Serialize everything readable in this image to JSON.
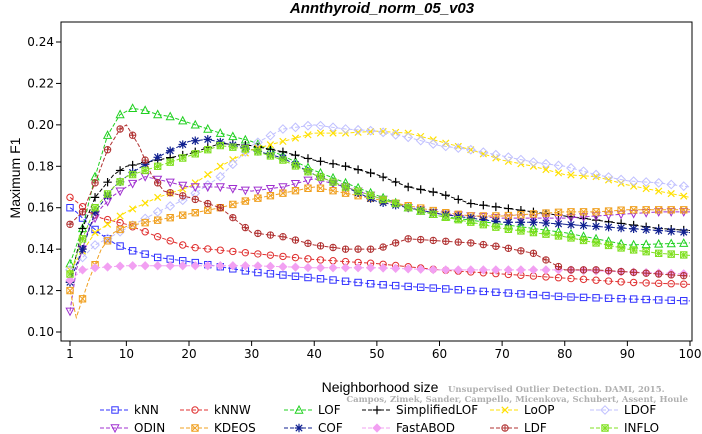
{
  "chart_data": {
    "type": "line",
    "title": "Annthyroid_norm_05_v03",
    "xlabel": "Neighborhood size",
    "ylabel": "Maximum F1",
    "xlim": [
      1,
      100
    ],
    "ylim": [
      0.1,
      0.245
    ],
    "x_ticks": [
      1,
      10,
      20,
      30,
      40,
      50,
      60,
      70,
      80,
      90,
      100
    ],
    "y_ticks": [
      0.1,
      0.12,
      0.14,
      0.16,
      0.18,
      0.2,
      0.22,
      0.24
    ],
    "x_tick_labels": [
      "1",
      "10",
      "20",
      "30",
      "40",
      "50",
      "60",
      "70",
      "80",
      "90",
      "100"
    ],
    "y_tick_labels": [
      "0.10",
      "0.12",
      "0.14",
      "0.16",
      "0.18",
      "0.20",
      "0.22",
      "0.24"
    ],
    "grid": false,
    "legend_position": "bottom",
    "watermark": {
      "line1": "Unsupervised Outlier Detection. DAMI, 2015.",
      "line2": "Campos, Zimek, Sander, Campello, Micenkova, Schubert, Assent, Houle"
    },
    "series": [
      {
        "name": "kNN",
        "color": "#3232ff",
        "marker": "square",
        "points": [
          [
            1,
            0.16
          ],
          [
            2,
            0.158
          ],
          [
            4,
            0.152
          ],
          [
            6,
            0.147
          ],
          [
            8,
            0.143
          ],
          [
            10,
            0.14
          ],
          [
            15,
            0.136
          ],
          [
            20,
            0.134
          ],
          [
            30,
            0.129
          ],
          [
            40,
            0.126
          ],
          [
            50,
            0.123
          ],
          [
            60,
            0.121
          ],
          [
            70,
            0.119
          ],
          [
            80,
            0.117
          ],
          [
            90,
            0.116
          ],
          [
            100,
            0.115
          ]
        ]
      },
      {
        "name": "kNNW",
        "color": "#e03030",
        "marker": "circle",
        "points": [
          [
            1,
            0.165
          ],
          [
            2,
            0.163
          ],
          [
            4,
            0.158
          ],
          [
            6,
            0.155
          ],
          [
            10,
            0.152
          ],
          [
            15,
            0.146
          ],
          [
            20,
            0.141
          ],
          [
            30,
            0.138
          ],
          [
            40,
            0.135
          ],
          [
            50,
            0.133
          ],
          [
            60,
            0.13
          ],
          [
            70,
            0.128
          ],
          [
            80,
            0.126
          ],
          [
            90,
            0.124
          ],
          [
            100,
            0.123
          ]
        ]
      },
      {
        "name": "LOF",
        "color": "#20d020",
        "marker": "triangle-up",
        "points": [
          [
            1,
            0.133
          ],
          [
            3,
            0.15
          ],
          [
            5,
            0.175
          ],
          [
            7,
            0.195
          ],
          [
            9,
            0.205
          ],
          [
            11,
            0.208
          ],
          [
            13,
            0.207
          ],
          [
            15,
            0.205
          ],
          [
            17,
            0.204
          ],
          [
            20,
            0.201
          ],
          [
            25,
            0.196
          ],
          [
            30,
            0.192
          ],
          [
            35,
            0.185
          ],
          [
            40,
            0.178
          ],
          [
            45,
            0.172
          ],
          [
            50,
            0.166
          ],
          [
            55,
            0.16
          ],
          [
            60,
            0.156
          ],
          [
            70,
            0.152
          ],
          [
            80,
            0.148
          ],
          [
            85,
            0.145
          ],
          [
            90,
            0.142
          ],
          [
            100,
            0.143
          ]
        ]
      },
      {
        "name": "SimplifiedLOF",
        "color": "#000000",
        "marker": "plus",
        "points": [
          [
            1,
            0.124
          ],
          [
            3,
            0.15
          ],
          [
            5,
            0.165
          ],
          [
            8,
            0.176
          ],
          [
            10,
            0.18
          ],
          [
            15,
            0.183
          ],
          [
            20,
            0.186
          ],
          [
            25,
            0.191
          ],
          [
            30,
            0.19
          ],
          [
            35,
            0.187
          ],
          [
            40,
            0.183
          ],
          [
            45,
            0.18
          ],
          [
            50,
            0.176
          ],
          [
            55,
            0.17
          ],
          [
            60,
            0.167
          ],
          [
            65,
            0.162
          ],
          [
            70,
            0.16
          ],
          [
            75,
            0.158
          ],
          [
            80,
            0.156
          ],
          [
            85,
            0.154
          ],
          [
            90,
            0.152
          ],
          [
            95,
            0.15
          ],
          [
            100,
            0.149
          ]
        ]
      },
      {
        "name": "LoOP",
        "color": "#ffe000",
        "marker": "x",
        "points": [
          [
            1,
            0.13
          ],
          [
            5,
            0.148
          ],
          [
            10,
            0.158
          ],
          [
            15,
            0.165
          ],
          [
            20,
            0.17
          ],
          [
            25,
            0.18
          ],
          [
            30,
            0.188
          ],
          [
            35,
            0.192
          ],
          [
            40,
            0.196
          ],
          [
            45,
            0.196
          ],
          [
            50,
            0.197
          ],
          [
            55,
            0.196
          ],
          [
            60,
            0.192
          ],
          [
            65,
            0.188
          ],
          [
            70,
            0.183
          ],
          [
            75,
            0.18
          ],
          [
            80,
            0.176
          ],
          [
            85,
            0.175
          ],
          [
            90,
            0.171
          ],
          [
            95,
            0.168
          ],
          [
            100,
            0.165
          ]
        ]
      },
      {
        "name": "LDOF",
        "color": "#c0c0ff",
        "marker": "diamond",
        "points": [
          [
            1,
            0.13
          ],
          [
            5,
            0.142
          ],
          [
            10,
            0.15
          ],
          [
            15,
            0.158
          ],
          [
            20,
            0.165
          ],
          [
            25,
            0.175
          ],
          [
            30,
            0.19
          ],
          [
            35,
            0.198
          ],
          [
            40,
            0.2
          ],
          [
            45,
            0.198
          ],
          [
            50,
            0.197
          ],
          [
            55,
            0.194
          ],
          [
            60,
            0.19
          ],
          [
            65,
            0.188
          ],
          [
            70,
            0.185
          ],
          [
            75,
            0.182
          ],
          [
            80,
            0.18
          ],
          [
            85,
            0.176
          ],
          [
            90,
            0.173
          ],
          [
            95,
            0.172
          ],
          [
            100,
            0.17
          ]
        ]
      },
      {
        "name": "ODIN",
        "color": "#a030d0",
        "marker": "triangle-down",
        "points": [
          [
            1,
            0.11
          ],
          [
            2,
            0.13
          ],
          [
            4,
            0.15
          ],
          [
            6,
            0.16
          ],
          [
            8,
            0.166
          ],
          [
            10,
            0.17
          ],
          [
            13,
            0.175
          ],
          [
            16,
            0.173
          ],
          [
            20,
            0.17
          ],
          [
            25,
            0.17
          ],
          [
            30,
            0.168
          ],
          [
            35,
            0.17
          ],
          [
            40,
            0.174
          ],
          [
            45,
            0.17
          ],
          [
            50,
            0.165
          ],
          [
            55,
            0.16
          ],
          [
            60,
            0.157
          ],
          [
            65,
            0.156
          ],
          [
            70,
            0.155
          ],
          [
            75,
            0.155
          ],
          [
            80,
            0.155
          ],
          [
            85,
            0.156
          ],
          [
            90,
            0.157
          ],
          [
            95,
            0.158
          ],
          [
            100,
            0.158
          ]
        ]
      },
      {
        "name": "KDEOS",
        "color": "#f0a020",
        "marker": "square-x",
        "points": [
          [
            1,
            0.12
          ],
          [
            2,
            0.107
          ],
          [
            4,
            0.125
          ],
          [
            6,
            0.14
          ],
          [
            8,
            0.148
          ],
          [
            10,
            0.151
          ],
          [
            15,
            0.154
          ],
          [
            20,
            0.157
          ],
          [
            25,
            0.16
          ],
          [
            30,
            0.164
          ],
          [
            35,
            0.167
          ],
          [
            40,
            0.17
          ],
          [
            45,
            0.167
          ],
          [
            50,
            0.164
          ],
          [
            55,
            0.161
          ],
          [
            60,
            0.158
          ],
          [
            65,
            0.156
          ],
          [
            70,
            0.156
          ],
          [
            75,
            0.157
          ],
          [
            80,
            0.158
          ],
          [
            85,
            0.158
          ],
          [
            90,
            0.159
          ],
          [
            95,
            0.159
          ],
          [
            100,
            0.159
          ]
        ]
      },
      {
        "name": "COF",
        "color": "#102090",
        "marker": "asterisk",
        "points": [
          [
            1,
            0.124
          ],
          [
            3,
            0.14
          ],
          [
            5,
            0.158
          ],
          [
            8,
            0.17
          ],
          [
            10,
            0.175
          ],
          [
            13,
            0.181
          ],
          [
            16,
            0.186
          ],
          [
            20,
            0.192
          ],
          [
            23,
            0.193
          ],
          [
            26,
            0.191
          ],
          [
            30,
            0.188
          ],
          [
            35,
            0.184
          ],
          [
            40,
            0.176
          ],
          [
            45,
            0.17
          ],
          [
            50,
            0.163
          ],
          [
            55,
            0.16
          ],
          [
            60,
            0.157
          ],
          [
            65,
            0.155
          ],
          [
            70,
            0.153
          ],
          [
            75,
            0.153
          ],
          [
            80,
            0.152
          ],
          [
            85,
            0.151
          ],
          [
            90,
            0.15
          ],
          [
            95,
            0.149
          ],
          [
            100,
            0.148
          ]
        ]
      },
      {
        "name": "FastABOD",
        "color": "#f2a0f2",
        "marker": "diamond-filled",
        "points": [
          [
            1,
            0.125
          ],
          [
            3,
            0.13
          ],
          [
            5,
            0.131
          ],
          [
            10,
            0.132
          ],
          [
            15,
            0.132
          ],
          [
            20,
            0.132
          ],
          [
            30,
            0.132
          ],
          [
            40,
            0.131
          ],
          [
            50,
            0.131
          ],
          [
            60,
            0.13
          ],
          [
            70,
            0.13
          ],
          [
            80,
            0.13
          ],
          [
            90,
            0.129
          ],
          [
            100,
            0.128
          ]
        ]
      },
      {
        "name": "LDF",
        "color": "#b03030",
        "marker": "circle-plus",
        "points": [
          [
            1,
            0.152
          ],
          [
            3,
            0.158
          ],
          [
            5,
            0.172
          ],
          [
            7,
            0.188
          ],
          [
            9,
            0.198
          ],
          [
            10,
            0.2
          ],
          [
            12,
            0.19
          ],
          [
            14,
            0.176
          ],
          [
            16,
            0.168
          ],
          [
            20,
            0.165
          ],
          [
            25,
            0.16
          ],
          [
            30,
            0.148
          ],
          [
            35,
            0.146
          ],
          [
            40,
            0.142
          ],
          [
            45,
            0.14
          ],
          [
            50,
            0.14
          ],
          [
            55,
            0.145
          ],
          [
            60,
            0.144
          ],
          [
            65,
            0.143
          ],
          [
            70,
            0.141
          ],
          [
            75,
            0.138
          ],
          [
            80,
            0.13
          ],
          [
            85,
            0.13
          ],
          [
            90,
            0.129
          ],
          [
            95,
            0.128
          ],
          [
            100,
            0.127
          ]
        ]
      },
      {
        "name": "INFLO",
        "color": "#80e020",
        "marker": "star-box",
        "points": [
          [
            1,
            0.128
          ],
          [
            3,
            0.145
          ],
          [
            5,
            0.16
          ],
          [
            8,
            0.17
          ],
          [
            10,
            0.175
          ],
          [
            15,
            0.18
          ],
          [
            20,
            0.185
          ],
          [
            25,
            0.19
          ],
          [
            30,
            0.188
          ],
          [
            35,
            0.183
          ],
          [
            40,
            0.176
          ],
          [
            45,
            0.17
          ],
          [
            50,
            0.165
          ],
          [
            55,
            0.16
          ],
          [
            60,
            0.156
          ],
          [
            65,
            0.153
          ],
          [
            70,
            0.15
          ],
          [
            75,
            0.148
          ],
          [
            80,
            0.146
          ],
          [
            85,
            0.143
          ],
          [
            90,
            0.14
          ],
          [
            95,
            0.138
          ],
          [
            100,
            0.137
          ]
        ]
      }
    ]
  }
}
